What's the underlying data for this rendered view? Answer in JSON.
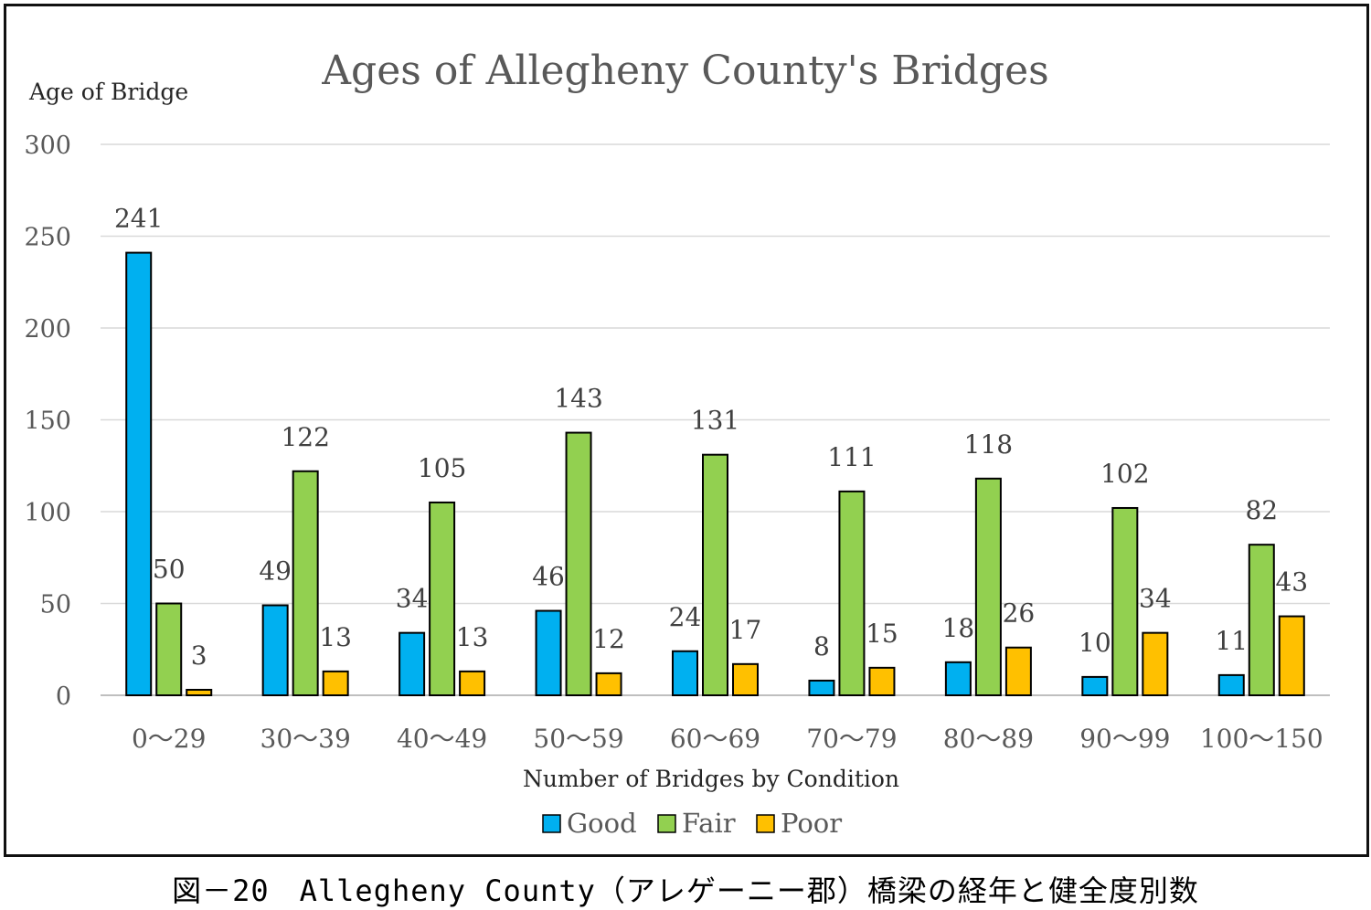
{
  "caption": "図－20　Allegheny County（アレゲーニー郡）橋梁の経年と健全度別数",
  "chart_data": {
    "type": "bar",
    "title": "Ages of Allegheny County's Bridges",
    "ylabel": "Age of Bridge",
    "xlabel": "Number of Bridges by Condition",
    "categories": [
      "0～29",
      "30～39",
      "40～49",
      "50～59",
      "60～69",
      "70～79",
      "80～89",
      "90～99",
      "100～150"
    ],
    "series": [
      {
        "name": "Good",
        "color": "#00b0f0",
        "values": [
          241,
          49,
          34,
          46,
          24,
          8,
          18,
          10,
          11
        ]
      },
      {
        "name": "Fair",
        "color": "#92d050",
        "values": [
          50,
          122,
          105,
          143,
          131,
          111,
          118,
          102,
          82
        ]
      },
      {
        "name": "Poor",
        "color": "#ffc000",
        "values": [
          3,
          13,
          13,
          12,
          17,
          15,
          26,
          34,
          43
        ]
      }
    ],
    "ylim": [
      0,
      300
    ],
    "yticks": [
      0,
      50,
      100,
      150,
      200,
      250,
      300
    ],
    "grid": true,
    "legend_position": "bottom",
    "data_labels": true
  }
}
